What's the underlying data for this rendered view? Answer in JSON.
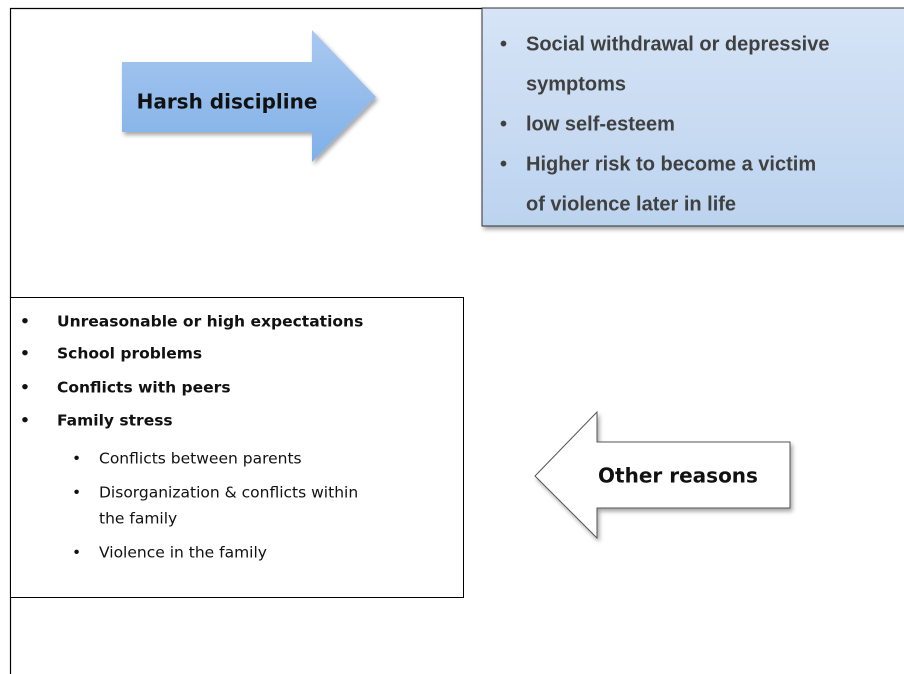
{
  "harsh_arrow": {
    "label": "Harsh discipline"
  },
  "outcomes": {
    "items": [
      [
        "Social withdrawal or depressive",
        "symptoms"
      ],
      [
        "low self-esteem"
      ],
      [
        "Higher risk to become a victim",
        "of violence later in life"
      ]
    ]
  },
  "causes": {
    "items": [
      {
        "text": "Unreasonable or high expectations"
      },
      {
        "text": "School problems"
      },
      {
        "text": "Conflicts with peers"
      },
      {
        "text": "Family stress",
        "subitems": [
          [
            "Conflicts between parents"
          ],
          [
            "Disorganization & conflicts within",
            "the family"
          ],
          [
            "Violence in the family"
          ]
        ]
      }
    ]
  },
  "other_arrow": {
    "label": "Other reasons"
  }
}
